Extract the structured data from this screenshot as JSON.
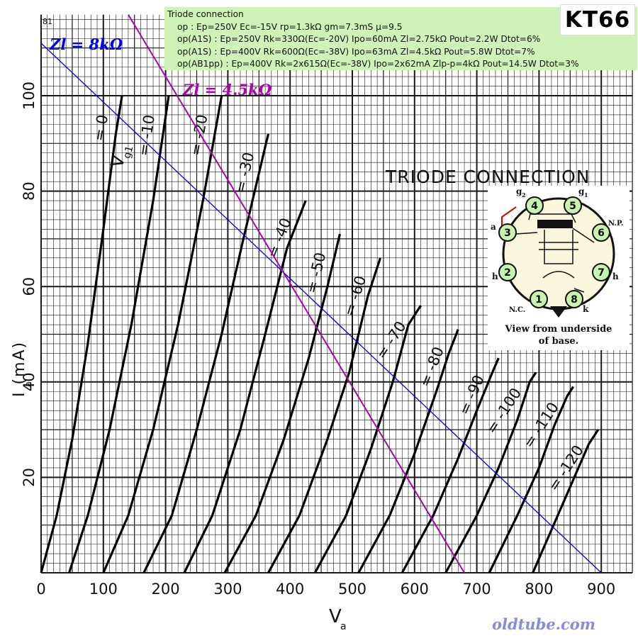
{
  "chart_data": {
    "type": "line",
    "title": "TRIODE CONNECTION",
    "tube": "KT66",
    "corner_number": "81",
    "xlabel_main": "V",
    "xlabel_sub": "a",
    "ylabel": "I (mA)",
    "ylabel_sub": "a",
    "xlim": [
      0,
      950
    ],
    "ylim": [
      0,
      117
    ],
    "x_ticks": [
      0,
      100,
      200,
      300,
      400,
      500,
      600,
      700,
      800,
      900
    ],
    "y_ticks": [
      20,
      40,
      60,
      80,
      100
    ],
    "grid": true,
    "series": [
      {
        "name": "= 0",
        "points": [
          [
            0,
            0
          ],
          [
            25,
            12
          ],
          [
            50,
            28
          ],
          [
            75,
            48
          ],
          [
            100,
            72
          ],
          [
            120,
            92
          ],
          [
            130,
            100
          ]
        ]
      },
      {
        "name": "= -10",
        "points": [
          [
            45,
            0
          ],
          [
            75,
            12
          ],
          [
            110,
            30
          ],
          [
            145,
            52
          ],
          [
            180,
            78
          ],
          [
            205,
            100
          ]
        ]
      },
      {
        "name": "= -20",
        "points": [
          [
            100,
            0
          ],
          [
            140,
            12
          ],
          [
            180,
            30
          ],
          [
            220,
            52
          ],
          [
            260,
            78
          ],
          [
            290,
            100
          ]
        ]
      },
      {
        "name": "= -30",
        "points": [
          [
            165,
            0
          ],
          [
            210,
            12
          ],
          [
            250,
            30
          ],
          [
            290,
            50
          ],
          [
            325,
            70
          ],
          [
            365,
            92
          ]
        ]
      },
      {
        "name": "= -40",
        "points": [
          [
            230,
            0
          ],
          [
            275,
            12
          ],
          [
            320,
            30
          ],
          [
            360,
            50
          ],
          [
            395,
            68
          ],
          [
            425,
            78
          ]
        ]
      },
      {
        "name": "= -50",
        "points": [
          [
            295,
            0
          ],
          [
            345,
            12
          ],
          [
            390,
            28
          ],
          [
            430,
            45
          ],
          [
            460,
            60
          ],
          [
            480,
            71
          ]
        ]
      },
      {
        "name": "= -60",
        "points": [
          [
            365,
            0
          ],
          [
            415,
            12
          ],
          [
            460,
            28
          ],
          [
            495,
            42
          ],
          [
            525,
            58
          ],
          [
            545,
            66
          ]
        ]
      },
      {
        "name": "= -70",
        "points": [
          [
            440,
            0
          ],
          [
            490,
            12
          ],
          [
            530,
            26
          ],
          [
            565,
            40
          ],
          [
            590,
            52
          ],
          [
            610,
            56
          ]
        ]
      },
      {
        "name": "= -80",
        "points": [
          [
            510,
            0
          ],
          [
            560,
            12
          ],
          [
            600,
            25
          ],
          [
            635,
            38
          ],
          [
            655,
            46
          ],
          [
            670,
            51
          ]
        ]
      },
      {
        "name": "= -90",
        "points": [
          [
            580,
            0
          ],
          [
            630,
            12
          ],
          [
            670,
            24
          ],
          [
            700,
            34
          ],
          [
            725,
            42
          ],
          [
            735,
            45
          ]
        ]
      },
      {
        "name": "= -100",
        "points": [
          [
            650,
            0
          ],
          [
            700,
            12
          ],
          [
            735,
            22
          ],
          [
            765,
            32
          ],
          [
            785,
            40
          ],
          [
            795,
            42
          ]
        ]
      },
      {
        "name": "= -110",
        "points": [
          [
            720,
            0
          ],
          [
            765,
            12
          ],
          [
            800,
            22
          ],
          [
            825,
            31
          ],
          [
            845,
            37
          ],
          [
            855,
            39
          ]
        ]
      },
      {
        "name": "= -120",
        "points": [
          [
            790,
            0
          ],
          [
            830,
            12
          ],
          [
            860,
            21
          ],
          [
            880,
            27
          ],
          [
            895,
            30
          ]
        ]
      }
    ],
    "load_lines": [
      {
        "name": "Zl = 8kΩ",
        "color": "#0000ee",
        "points": [
          [
            0,
            111
          ],
          [
            900,
            0
          ]
        ]
      },
      {
        "name": "Zl = 4.5kΩ",
        "color": "#b000b0",
        "points": [
          [
            140,
            117
          ],
          [
            680,
            0
          ]
        ]
      }
    ],
    "grid_label": "V",
    "grid_label_sub": "g1"
  },
  "info": {
    "title": "Triode connection",
    "lines": [
      "op : Ep=250V Ec=-15V rp=1.3kΩ gm=7.3mS μ=9.5",
      "op(A1S) : Ep=250V Rk=330Ω(Ec=-20V) Ipo=60mA Zl=2.75kΩ Pout=2.2W Dtot=6%",
      "op(A1S) : Ep=400V Rk=600Ω(Ec=-38V) Ipo=63mA Zl=4.5kΩ Pout=5.8W Dtot=7%",
      "op(AB1pp) : Ep=400V Rk=2x615Ω(Ec=-38V) Ipo=2x62mA Zlp-p=4kΩ Pout=14.5W Dtot=3%"
    ]
  },
  "model_label": "KT66",
  "pinout": {
    "pins": [
      "1",
      "2",
      "3",
      "4",
      "5",
      "6",
      "7",
      "8"
    ],
    "labels": {
      "g2": "g",
      "g2_sub": "2",
      "g1": "g",
      "g1_sub": "1",
      "a": "a",
      "np": "N.P.",
      "h_left": "h",
      "h_right": "h",
      "nc": "N.C.",
      "k": "k"
    },
    "caption_line1": "View from underside",
    "caption_line2": "of base."
  },
  "watermark": "oldtube.com",
  "colors": {
    "grid": "#1a1a1a",
    "curve": "#000000",
    "load_8k": "#0000ee",
    "load_45k": "#b000b0",
    "info_bg": "#cdf3b8",
    "pin_fill": "#c8f2b0"
  }
}
